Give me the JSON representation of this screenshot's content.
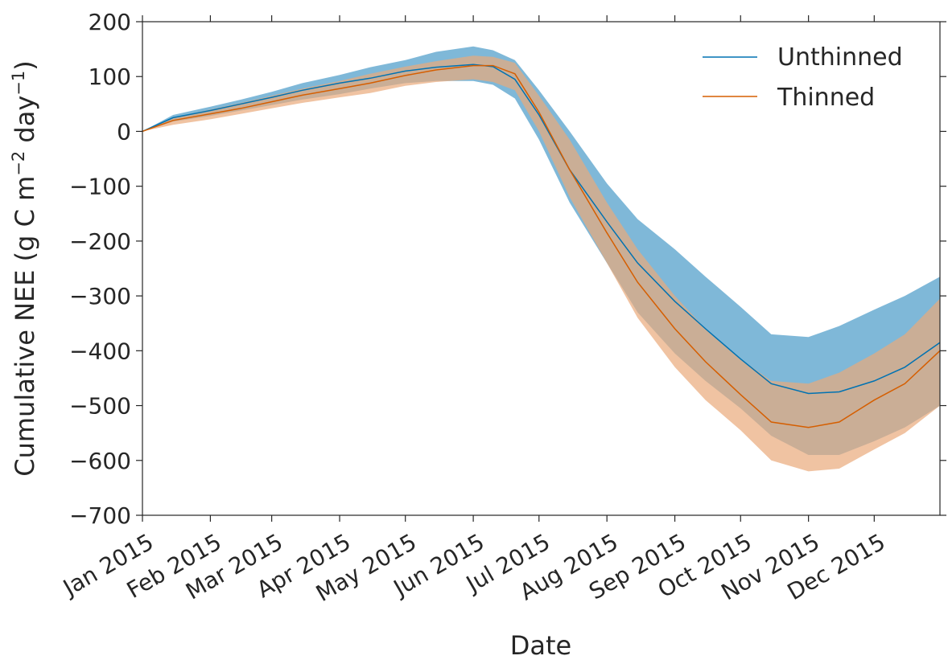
{
  "chart_data": {
    "type": "line",
    "title": "",
    "xlabel": "Date",
    "ylabel_main": "Cumulative NEE (g C m",
    "ylabel_sup1": "−2",
    "ylabel_mid": " day",
    "ylabel_sup2": "−1",
    "ylabel_end": ")",
    "x_dates": [
      "2015-01-01",
      "2015-01-15",
      "2015-02-01",
      "2015-02-15",
      "2015-03-01",
      "2015-03-15",
      "2015-04-01",
      "2015-04-15",
      "2015-05-01",
      "2015-05-15",
      "2015-06-01",
      "2015-06-10",
      "2015-06-20",
      "2015-07-01",
      "2015-07-15",
      "2015-08-01",
      "2015-08-15",
      "2015-09-01",
      "2015-09-15",
      "2015-10-01",
      "2015-10-15",
      "2015-11-01",
      "2015-11-15",
      "2015-12-01",
      "2015-12-15",
      "2015-12-31"
    ],
    "xlim": [
      "2015-01-01",
      "2015-12-31"
    ],
    "ylim": [
      -700,
      200
    ],
    "x_ticks": [
      "2015-01-01",
      "2015-02-01",
      "2015-03-01",
      "2015-04-01",
      "2015-05-01",
      "2015-06-01",
      "2015-07-01",
      "2015-08-01",
      "2015-09-01",
      "2015-10-01",
      "2015-11-01",
      "2015-12-01"
    ],
    "x_tick_labels": [
      "Jan 2015",
      "Feb 2015",
      "Mar 2015",
      "Apr 2015",
      "May 2015",
      "Jun 2015",
      "Jul 2015",
      "Aug 2015",
      "Sep 2015",
      "Oct 2015",
      "Nov 2015",
      "Dec 2015"
    ],
    "y_ticks": [
      200,
      100,
      0,
      -100,
      -200,
      -300,
      -400,
      -500,
      -600,
      -700
    ],
    "y_tick_labels": [
      "200",
      "100",
      "0",
      "−100",
      "−200",
      "−300",
      "−400",
      "−500",
      "−600",
      "−700"
    ],
    "series": [
      {
        "name": "Unthinned",
        "color": "#0072B2",
        "band_color": "#7fb8d8",
        "values": [
          0,
          25,
          38,
          50,
          62,
          75,
          88,
          97,
          110,
          117,
          122,
          118,
          95,
          30,
          -70,
          -165,
          -240,
          -310,
          -360,
          -415,
          -460,
          -478,
          -475,
          -455,
          -430,
          -385
        ],
        "upper": [
          0,
          30,
          45,
          58,
          72,
          88,
          103,
          117,
          130,
          145,
          155,
          148,
          130,
          75,
          0,
          -95,
          -160,
          -215,
          -265,
          -320,
          -370,
          -375,
          -355,
          -325,
          -300,
          -265
        ],
        "lower": [
          0,
          18,
          28,
          38,
          48,
          58,
          68,
          78,
          88,
          92,
          92,
          85,
          60,
          -15,
          -130,
          -240,
          -330,
          -405,
          -455,
          -505,
          -555,
          -590,
          -590,
          -565,
          -540,
          -500
        ]
      },
      {
        "name": "Thinned",
        "color": "#D55E00",
        "band_color": "#eaaa7a",
        "values": [
          0,
          20,
          32,
          42,
          54,
          66,
          78,
          88,
          102,
          112,
          120,
          120,
          105,
          35,
          -70,
          -185,
          -275,
          -360,
          -420,
          -480,
          -530,
          -540,
          -530,
          -490,
          -460,
          -400
        ],
        "upper": [
          0,
          25,
          40,
          52,
          65,
          78,
          92,
          105,
          118,
          128,
          138,
          136,
          125,
          65,
          -15,
          -130,
          -215,
          -300,
          -360,
          -415,
          -455,
          -460,
          -440,
          -405,
          -370,
          -305
        ],
        "lower": [
          0,
          12,
          22,
          32,
          42,
          52,
          62,
          70,
          83,
          90,
          95,
          90,
          75,
          0,
          -120,
          -240,
          -340,
          -430,
          -490,
          -545,
          -600,
          -620,
          -615,
          -580,
          -550,
          -500
        ]
      }
    ],
    "legend_placement": "top-right",
    "grid": false
  }
}
